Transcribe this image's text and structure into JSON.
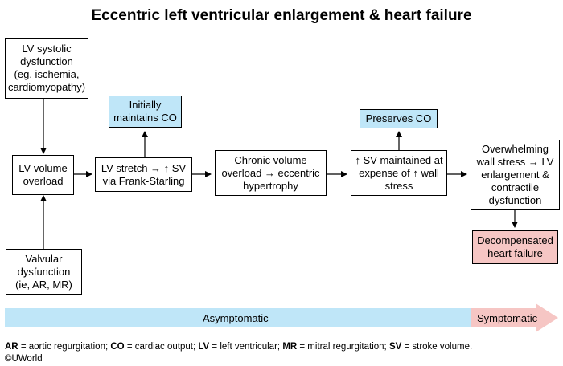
{
  "title": "Eccentric left ventricular enlargement & heart failure",
  "nodes": {
    "lv_systolic": "LV systolic\ndysfunction\n(eg, ischemia,\ncardiomyopathy)",
    "lv_volume": "LV volume\noverload",
    "valvular": "Valvular\ndysfunction\n(ie, AR, MR)",
    "lv_stretch": "LV stretch → ↑ SV\nvia Frank-Starling",
    "initially": "Initially\nmaintains CO",
    "chronic": "Chronic volume\noverload → eccentric\nhypertrophy",
    "sv_maintained": "↑ SV maintained at\nexpense of ↑ wall\nstress",
    "preserves": "Preserves CO",
    "overwhelming": "Overwhelming\nwall stress → LV\nenlargement &\ncontractile\ndysfunction",
    "decompensated": "Decompensated\nheart failure"
  },
  "progression": {
    "asymptomatic": "Asymptomatic",
    "symptomatic": "Symptomatic"
  },
  "legend": [
    {
      "abbr": "AR",
      "text": " = aortic regurgitation; "
    },
    {
      "abbr": "CO",
      "text": " = cardiac output; "
    },
    {
      "abbr": "LV",
      "text": " = left ventricular; "
    },
    {
      "abbr": "MR",
      "text": " = mitral regurgitation; "
    },
    {
      "abbr": "SV",
      "text": " = stroke volume."
    }
  ],
  "copyright": "©UWorld",
  "colors": {
    "blue_box": "#bfe6f8",
    "red_box": "#f6c6c4",
    "asymptomatic_bar": "#bfe6f8",
    "symptomatic_arrow": "#f6c6c4"
  }
}
